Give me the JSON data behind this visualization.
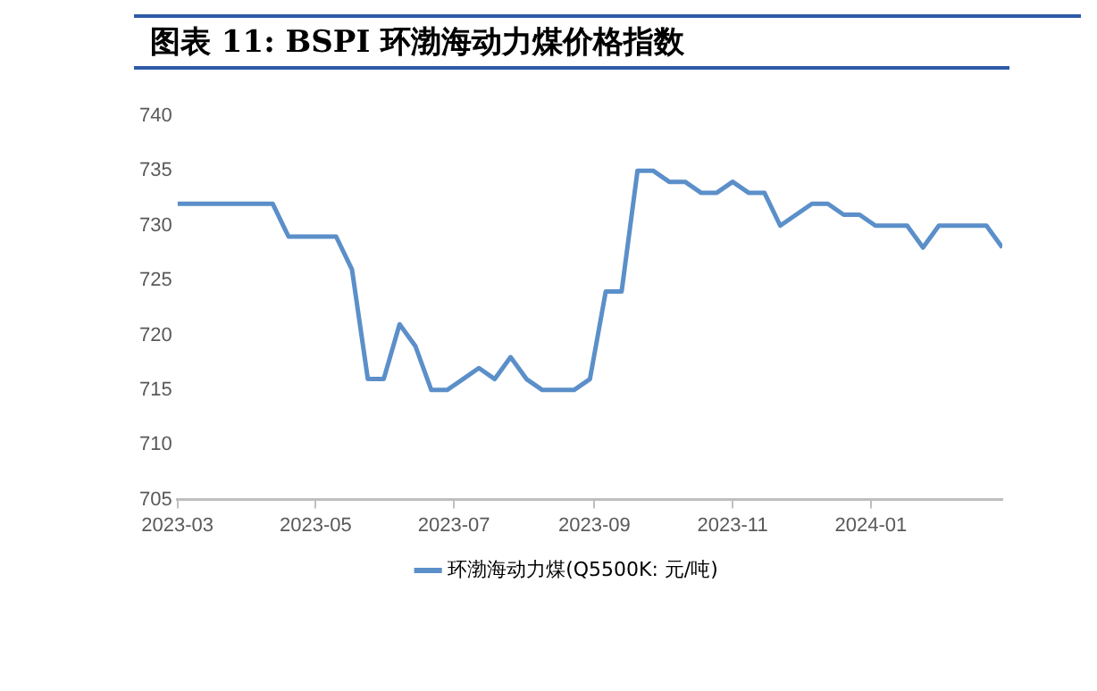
{
  "chart_data": {
    "type": "line",
    "title": "图表 11:  BSPI 环渤海动力煤价格指数",
    "x": [
      "2023-03-01",
      "2023-03-08",
      "2023-03-15",
      "2023-03-22",
      "2023-03-29",
      "2023-04-05",
      "2023-04-12",
      "2023-04-19",
      "2023-04-26",
      "2023-05-03",
      "2023-05-10",
      "2023-05-17",
      "2023-05-24",
      "2023-05-31",
      "2023-06-07",
      "2023-06-14",
      "2023-06-21",
      "2023-06-28",
      "2023-07-05",
      "2023-07-12",
      "2023-07-19",
      "2023-07-26",
      "2023-08-02",
      "2023-08-09",
      "2023-08-16",
      "2023-08-23",
      "2023-08-30",
      "2023-09-06",
      "2023-09-13",
      "2023-09-20",
      "2023-09-27",
      "2023-10-04",
      "2023-10-11",
      "2023-10-18",
      "2023-10-25",
      "2023-11-01",
      "2023-11-08",
      "2023-11-15",
      "2023-11-22",
      "2023-11-29",
      "2023-12-06",
      "2023-12-13",
      "2023-12-20",
      "2023-12-27",
      "2024-01-03",
      "2024-01-10",
      "2024-01-17",
      "2024-01-24",
      "2024-01-31",
      "2024-02-07",
      "2024-02-14",
      "2024-02-21",
      "2024-02-28"
    ],
    "series": [
      {
        "name": "环渤海动力煤(Q5500K: 元/吨)",
        "color": "#5b8fc9",
        "values": [
          732,
          732,
          732,
          732,
          732,
          732,
          732,
          729,
          729,
          729,
          729,
          726,
          716,
          716,
          721,
          719,
          715,
          715,
          716,
          717,
          716,
          718,
          716,
          715,
          715,
          715,
          716,
          724,
          724,
          735,
          735,
          734,
          734,
          733,
          733,
          734,
          733,
          733,
          730,
          731,
          732,
          732,
          731,
          731,
          730,
          730,
          730,
          728,
          730,
          730,
          730,
          730,
          728
        ]
      }
    ],
    "xlim": [
      "2023-03-01",
      "2024-02-28"
    ],
    "xticks": [
      "2023-03",
      "2023-05",
      "2023-07",
      "2023-09",
      "2023-11",
      "2024-01"
    ],
    "ylim": [
      705,
      740
    ],
    "yticks": [
      705,
      710,
      715,
      720,
      725,
      730,
      735,
      740
    ],
    "grid": false,
    "legend": "bottom",
    "marker": "none",
    "line_style": "solid"
  }
}
